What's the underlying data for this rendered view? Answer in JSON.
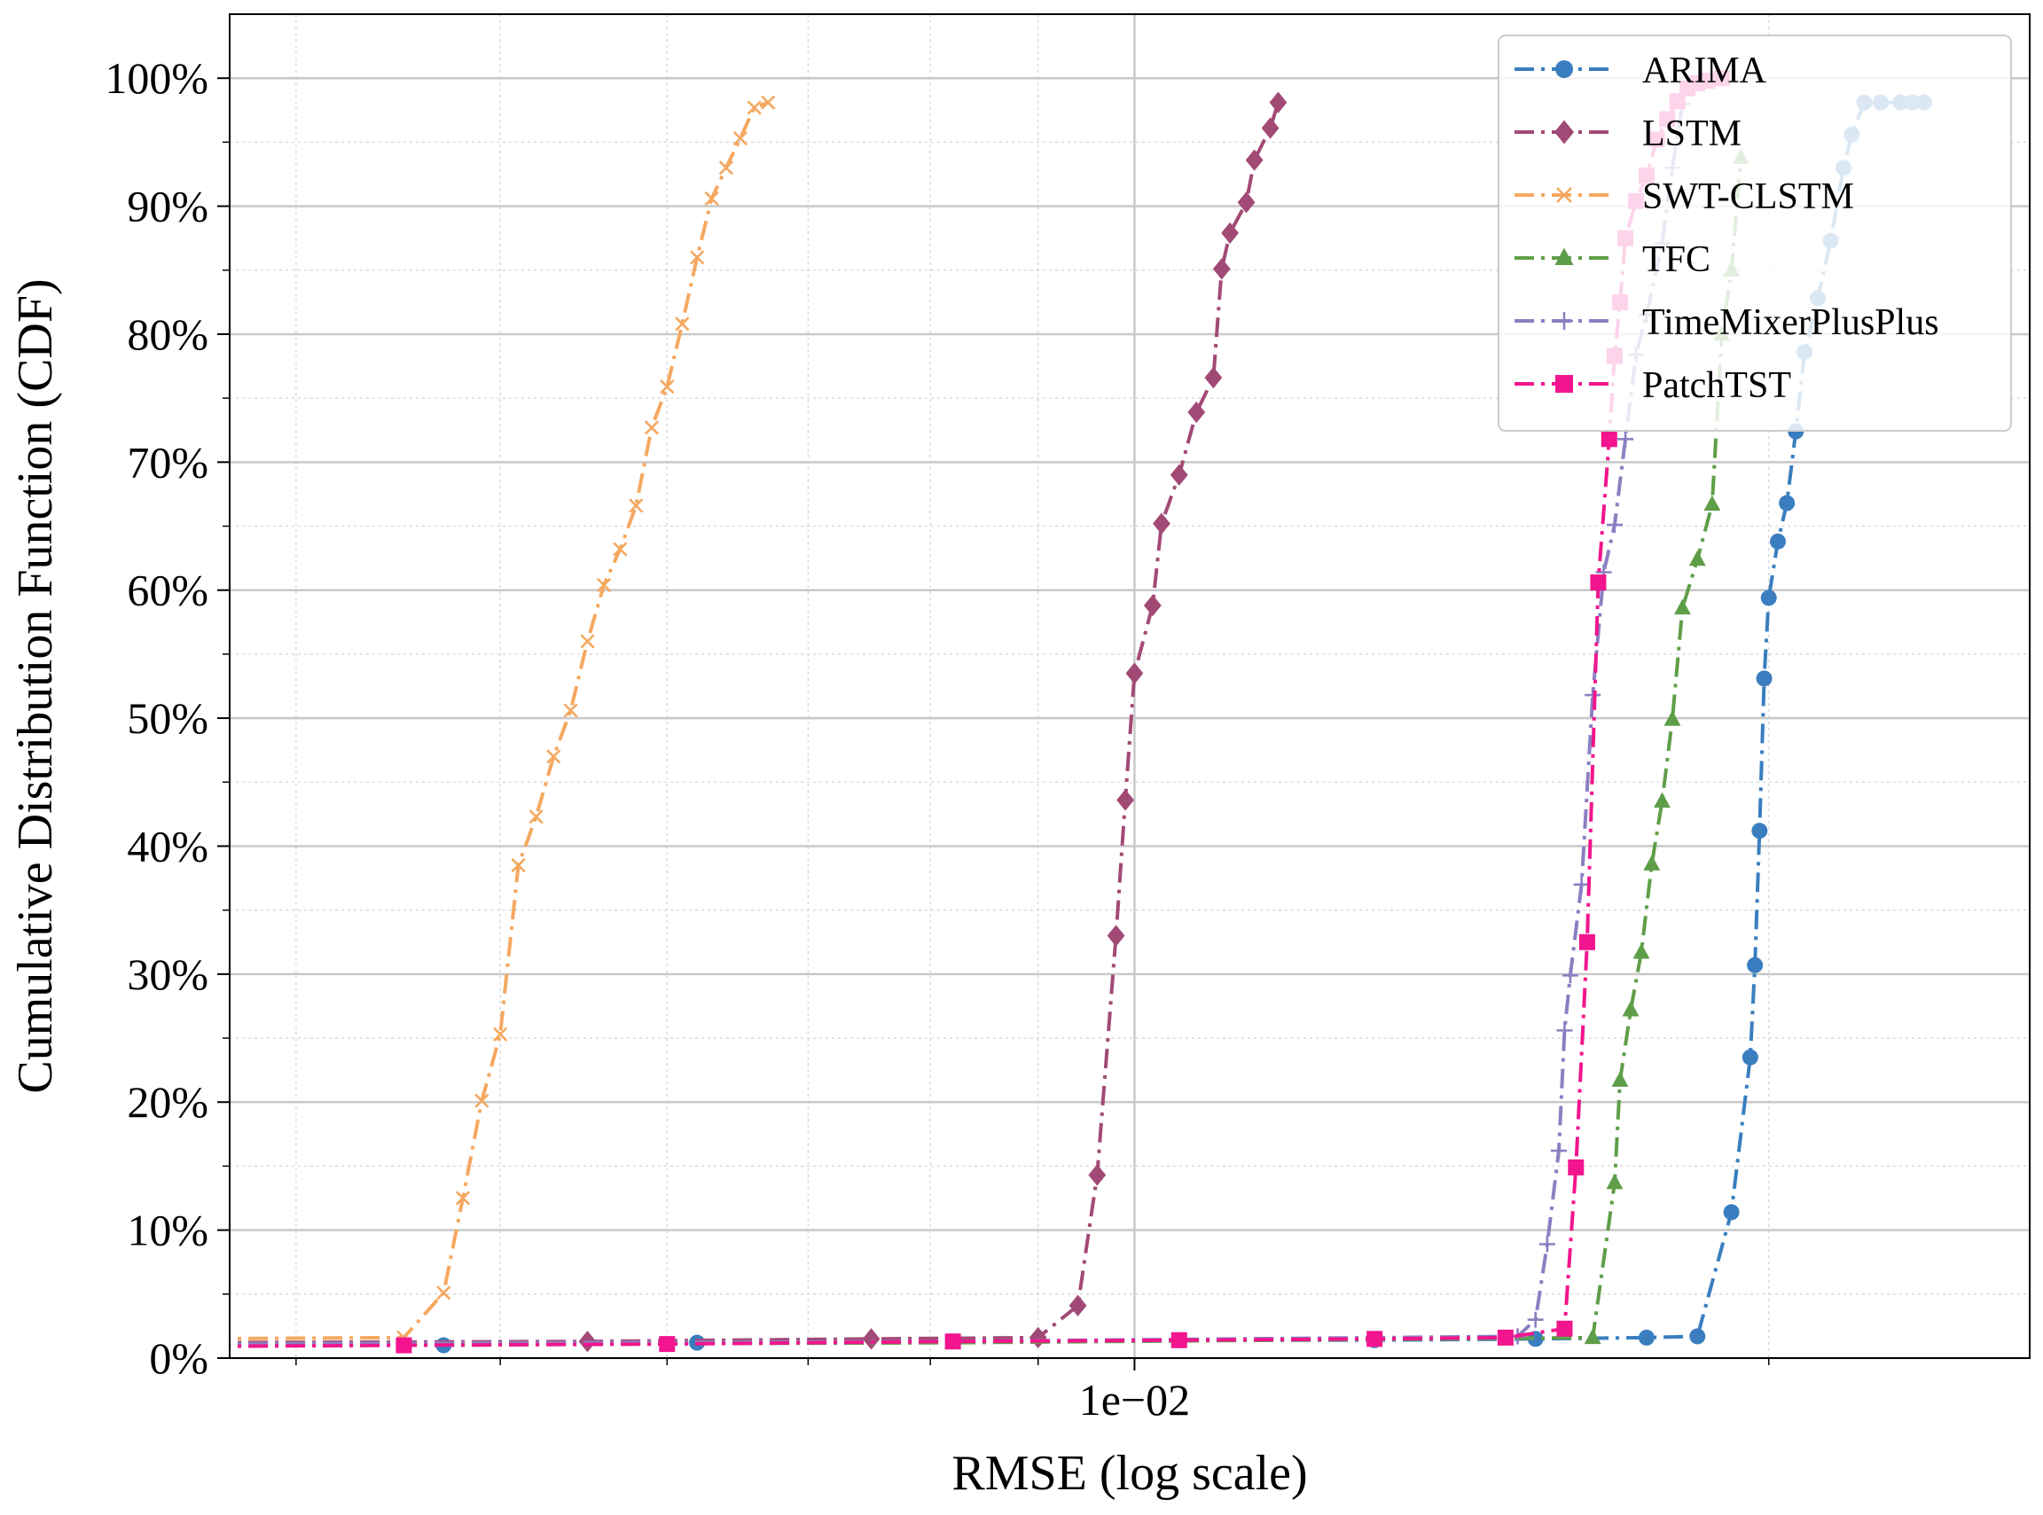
{
  "chart_data": {
    "type": "line",
    "title": "",
    "xlabel": "RMSE (log scale)",
    "ylabel": "Cumulative Distribution Function (CDF)",
    "xscale": "log",
    "xlim": [
      0.00372,
      0.0266
    ],
    "ylim": [
      0,
      1.05
    ],
    "xticks": [
      {
        "value": 0.01,
        "label": "1e−02"
      }
    ],
    "yticks": [
      {
        "value": 0.0,
        "label": "0%"
      },
      {
        "value": 0.1,
        "label": "10%"
      },
      {
        "value": 0.2,
        "label": "20%"
      },
      {
        "value": 0.3,
        "label": "30%"
      },
      {
        "value": 0.4,
        "label": "40%"
      },
      {
        "value": 0.5,
        "label": "50%"
      },
      {
        "value": 0.6,
        "label": "60%"
      },
      {
        "value": 0.7,
        "label": "70%"
      },
      {
        "value": 0.8,
        "label": "80%"
      },
      {
        "value": 0.9,
        "label": "90%"
      },
      {
        "value": 1.0,
        "label": "100%"
      }
    ],
    "grid": true,
    "legend": "top-right",
    "series": [
      {
        "name": "ARIMA",
        "color": "#3a7ebf",
        "marker": "circle",
        "x": [
          0.0035,
          0.0047,
          0.0062,
          0.0082,
          0.0105,
          0.013,
          0.0155,
          0.0175,
          0.0185,
          0.0192,
          0.0196,
          0.0197,
          0.0198,
          0.0199,
          0.02,
          0.0202,
          0.0204,
          0.0206,
          0.0208,
          0.0211,
          0.0214,
          0.0217,
          0.0219,
          0.0222,
          0.0226,
          0.0231,
          0.0234,
          0.0237
        ],
        "y": [
          0.01,
          0.01,
          0.012,
          0.013,
          0.014,
          0.014,
          0.015,
          0.016,
          0.017,
          0.114,
          0.235,
          0.307,
          0.412,
          0.531,
          0.594,
          0.638,
          0.668,
          0.724,
          0.786,
          0.828,
          0.873,
          0.93,
          0.956,
          0.981,
          0.981,
          0.981,
          0.981,
          0.981
        ]
      },
      {
        "name": "LSTM",
        "color": "#a24a76",
        "marker": "diamond",
        "x": [
          0.0035,
          0.0055,
          0.0075,
          0.009,
          0.0094,
          0.0096,
          0.0098,
          0.0099,
          0.01,
          0.0102,
          0.0103,
          0.0105,
          0.0107,
          0.0109,
          0.011,
          0.0111,
          0.0113,
          0.0114,
          0.0116,
          0.0117
        ],
        "y": [
          0.012,
          0.013,
          0.015,
          0.016,
          0.041,
          0.143,
          0.33,
          0.436,
          0.535,
          0.588,
          0.652,
          0.69,
          0.739,
          0.766,
          0.851,
          0.879,
          0.903,
          0.936,
          0.961,
          0.981
        ]
      },
      {
        "name": "SWT-CLSTM",
        "color": "#f5a860",
        "marker": "x",
        "x": [
          0.0035,
          0.0045,
          0.0047,
          0.0048,
          0.0049,
          0.005,
          0.0051,
          0.0052,
          0.0053,
          0.0054,
          0.0055,
          0.0056,
          0.0057,
          0.0058,
          0.0059,
          0.006,
          0.0061,
          0.0062,
          0.0063,
          0.0064,
          0.0065,
          0.0066,
          0.0067
        ],
        "y": [
          0.015,
          0.016,
          0.051,
          0.125,
          0.201,
          0.253,
          0.385,
          0.423,
          0.47,
          0.506,
          0.56,
          0.604,
          0.632,
          0.666,
          0.727,
          0.759,
          0.808,
          0.86,
          0.906,
          0.93,
          0.953,
          0.977,
          0.981
        ]
      },
      {
        "name": "TFC",
        "color": "#5f9e48",
        "marker": "triangle",
        "x": [
          0.0035,
          0.0082,
          0.0165,
          0.0169,
          0.017,
          0.0172,
          0.0174,
          0.0176,
          0.0178,
          0.018,
          0.0182,
          0.0185,
          0.0188,
          0.019,
          0.0192,
          0.0194
        ],
        "y": [
          0.01,
          0.012,
          0.016,
          0.137,
          0.217,
          0.272,
          0.317,
          0.386,
          0.435,
          0.499,
          0.586,
          0.624,
          0.667,
          0.8,
          0.85,
          0.938
        ]
      },
      {
        "name": "TimeMixerPlusPlus",
        "color": "#8b7fc2",
        "marker": "plus",
        "x": [
          0.0035,
          0.0082,
          0.0152,
          0.0155,
          0.0157,
          0.0159,
          0.016,
          0.0161,
          0.0163,
          0.0165,
          0.0167,
          0.0169,
          0.0171,
          0.0173,
          0.0175,
          0.0178,
          0.018,
          0.0182
        ],
        "y": [
          0.011,
          0.013,
          0.017,
          0.03,
          0.089,
          0.162,
          0.256,
          0.299,
          0.37,
          0.518,
          0.614,
          0.651,
          0.718,
          0.784,
          0.815,
          0.871,
          0.93,
          0.98
        ]
      },
      {
        "name": "PatchTST",
        "color": "#f2158d",
        "marker": "square",
        "x": [
          0.0035,
          0.0045,
          0.006,
          0.0082,
          0.0105,
          0.013,
          0.015,
          0.016,
          0.0162,
          0.0164,
          0.0166,
          0.0168,
          0.0169,
          0.017,
          0.0171,
          0.0173,
          0.0175,
          0.0177,
          0.0179,
          0.0181,
          0.0183,
          0.0185,
          0.0187,
          0.019
        ],
        "y": [
          0.009,
          0.01,
          0.011,
          0.013,
          0.014,
          0.015,
          0.016,
          0.023,
          0.149,
          0.325,
          0.606,
          0.718,
          0.783,
          0.825,
          0.875,
          0.904,
          0.924,
          0.952,
          0.968,
          0.982,
          0.992,
          0.996,
          0.998,
          1.0
        ]
      }
    ]
  }
}
